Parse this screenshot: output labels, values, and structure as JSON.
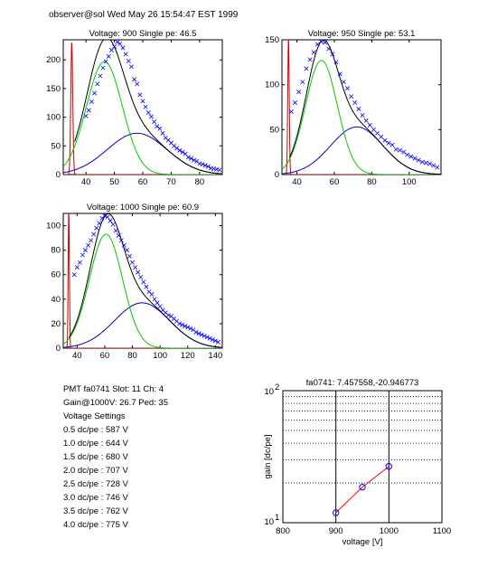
{
  "header": {
    "text": "observer@sol  Wed May 26 15:54:47 EST 1999"
  },
  "info": {
    "pmt_line": "PMT fa0741 Slot: 11 Ch: 4",
    "gain_line": "Gain@1000V: 26.7 Ped: 35",
    "settings_title": "Voltage Settings",
    "settings": [
      "0.5 dc/pe : 587 V",
      "1.0 dc/pe : 644 V",
      "1.5 dc/pe : 680 V",
      "2.0 dc/pe : 707 V",
      "2.5 dc/pe : 728 V",
      "3.0 dc/pe : 746 V",
      "3.5 dc/pe : 762 V",
      "4.0 dc/pe : 775 V"
    ]
  },
  "colors": {
    "data": "#0000ff",
    "total": "#000000",
    "signal": "#00c800",
    "background": "#0000c8",
    "pedestal": "#c80000",
    "fit_line": "#ff0000"
  },
  "chart_data": [
    {
      "type": "scatter",
      "title": "Voltage: 900 Single pe: 46.5",
      "xlim": [
        32,
        88
      ],
      "ylim": [
        0,
        235
      ],
      "xticks": [
        40,
        50,
        60,
        70,
        80
      ],
      "yticks": [
        0,
        50,
        100,
        150,
        200
      ],
      "ped": {
        "mu": 35,
        "sigma": 0.35,
        "amp": 230
      },
      "sig": {
        "mu": 46.5,
        "sigma": 6.3,
        "amp": 197
      },
      "bg": {
        "mu": 58,
        "sigma": 10.5,
        "amp": 72
      },
      "scatter": [
        [
          40,
          102
        ],
        [
          41,
          112
        ],
        [
          42,
          127
        ],
        [
          43,
          142
        ],
        [
          44,
          158
        ],
        [
          45,
          172
        ],
        [
          46,
          186
        ],
        [
          47,
          197
        ],
        [
          48,
          206
        ],
        [
          49,
          217
        ],
        [
          50,
          223
        ],
        [
          51,
          231
        ],
        [
          52,
          228
        ],
        [
          53,
          221
        ],
        [
          54,
          210
        ],
        [
          55,
          198
        ],
        [
          56,
          188
        ],
        [
          57,
          166
        ],
        [
          58,
          158
        ],
        [
          59,
          139
        ],
        [
          60,
          128
        ],
        [
          61,
          118
        ],
        [
          62,
          108
        ],
        [
          63,
          101
        ],
        [
          64,
          92
        ],
        [
          65,
          84
        ],
        [
          66,
          80
        ],
        [
          67,
          72
        ],
        [
          68,
          64
        ],
        [
          69,
          60
        ],
        [
          70,
          55
        ],
        [
          71,
          50
        ],
        [
          72,
          46
        ],
        [
          73,
          42
        ],
        [
          74,
          39
        ],
        [
          75,
          36
        ],
        [
          76,
          30
        ],
        [
          77,
          28
        ],
        [
          78,
          25
        ],
        [
          79,
          23
        ],
        [
          80,
          19
        ],
        [
          81,
          18
        ],
        [
          82,
          16
        ],
        [
          83,
          14
        ],
        [
          84,
          11
        ],
        [
          85,
          10
        ],
        [
          86,
          9
        ],
        [
          87,
          8
        ]
      ]
    },
    {
      "type": "scatter",
      "title": "Voltage: 950 Single pe: 53.1",
      "xlim": [
        32,
        117
      ],
      "ylim": [
        0,
        150
      ],
      "xticks": [
        40,
        60,
        80,
        100
      ],
      "yticks": [
        0,
        50,
        100,
        150
      ],
      "ped": {
        "mu": 35.5,
        "sigma": 0.4,
        "amp": 150
      },
      "sig": {
        "mu": 53.1,
        "sigma": 8.5,
        "amp": 127
      },
      "bg": {
        "mu": 72,
        "sigma": 14,
        "amp": 53
      },
      "scatter": [
        [
          37,
          70
        ],
        [
          39,
          80
        ],
        [
          41,
          92
        ],
        [
          43,
          103
        ],
        [
          45,
          118
        ],
        [
          47,
          128
        ],
        [
          49,
          136
        ],
        [
          51,
          145
        ],
        [
          53,
          148
        ],
        [
          55,
          147
        ],
        [
          57,
          140
        ],
        [
          59,
          134
        ],
        [
          61,
          125
        ],
        [
          63,
          112
        ],
        [
          65,
          103
        ],
        [
          67,
          96
        ],
        [
          69,
          87
        ],
        [
          71,
          80
        ],
        [
          73,
          73
        ],
        [
          75,
          66
        ],
        [
          77,
          60
        ],
        [
          79,
          55
        ],
        [
          81,
          50
        ],
        [
          83,
          46
        ],
        [
          85,
          42
        ],
        [
          87,
          38
        ],
        [
          89,
          35
        ],
        [
          91,
          33
        ],
        [
          93,
          28
        ],
        [
          95,
          27
        ],
        [
          97,
          25
        ],
        [
          99,
          22
        ],
        [
          101,
          20
        ],
        [
          103,
          18
        ],
        [
          105,
          16
        ],
        [
          107,
          14
        ],
        [
          109,
          13
        ],
        [
          111,
          12
        ],
        [
          113,
          10
        ],
        [
          115,
          8
        ]
      ]
    },
    {
      "type": "scatter",
      "title": "Voltage: 1000 Single pe: 60.9",
      "xlim": [
        30,
        145
      ],
      "ylim": [
        0,
        110
      ],
      "xticks": [
        40,
        60,
        80,
        100,
        120,
        140
      ],
      "yticks": [
        0,
        20,
        40,
        60,
        80,
        100
      ],
      "ped": {
        "mu": 34,
        "sigma": 0.45,
        "amp": 110
      },
      "sig": {
        "mu": 60.9,
        "sigma": 12,
        "amp": 93
      },
      "bg": {
        "mu": 87,
        "sigma": 20,
        "amp": 37
      },
      "scatter": [
        [
          38,
          60
        ],
        [
          40,
          66
        ],
        [
          42,
          70
        ],
        [
          44,
          76
        ],
        [
          46,
          80
        ],
        [
          48,
          84
        ],
        [
          50,
          88
        ],
        [
          52,
          93
        ],
        [
          54,
          98
        ],
        [
          56,
          102
        ],
        [
          58,
          106
        ],
        [
          60,
          108
        ],
        [
          62,
          107
        ],
        [
          64,
          104
        ],
        [
          66,
          101
        ],
        [
          68,
          96
        ],
        [
          70,
          92
        ],
        [
          72,
          88
        ],
        [
          74,
          84
        ],
        [
          76,
          80
        ],
        [
          78,
          75
        ],
        [
          80,
          70
        ],
        [
          82,
          66
        ],
        [
          84,
          62
        ],
        [
          86,
          58
        ],
        [
          88,
          54
        ],
        [
          90,
          50
        ],
        [
          92,
          46
        ],
        [
          94,
          44
        ],
        [
          96,
          40
        ],
        [
          98,
          37
        ],
        [
          100,
          34
        ],
        [
          102,
          31
        ],
        [
          104,
          29
        ],
        [
          106,
          27
        ],
        [
          108,
          26
        ],
        [
          110,
          24
        ],
        [
          112,
          22
        ],
        [
          114,
          20
        ],
        [
          116,
          19
        ],
        [
          118,
          18
        ],
        [
          120,
          17
        ],
        [
          122,
          16
        ],
        [
          124,
          15
        ],
        [
          126,
          13
        ],
        [
          128,
          12
        ],
        [
          130,
          11
        ],
        [
          132,
          10
        ],
        [
          134,
          9
        ],
        [
          136,
          8
        ],
        [
          138,
          7
        ],
        [
          140,
          6
        ],
        [
          142,
          5
        ]
      ]
    },
    {
      "type": "line",
      "title": "fa0741: 7.457558,-20.946773",
      "xlabel": "voltage [V]",
      "ylabel": "gain [dc/pe]",
      "xlim": [
        800,
        1100
      ],
      "ylim": [
        10,
        100
      ],
      "yscale": "log",
      "xticks": [
        "800",
        "900",
        "1000",
        "1100"
      ],
      "y_exponent_labels": [
        "2",
        "1"
      ],
      "grid": "y-dotted",
      "x": [
        900,
        950,
        1000
      ],
      "y": [
        11.9,
        18.6,
        26.7
      ]
    }
  ]
}
